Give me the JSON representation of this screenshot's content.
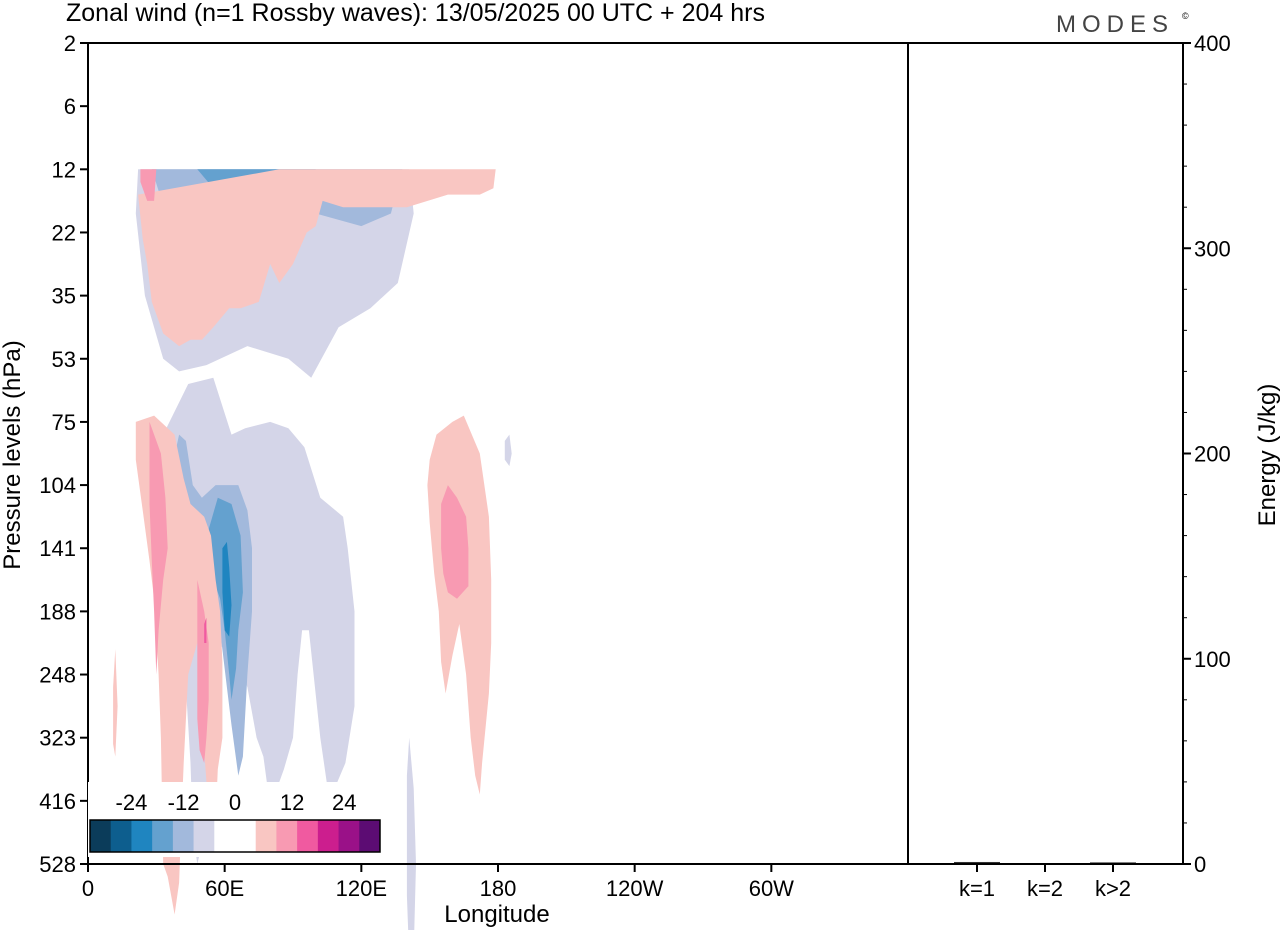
{
  "chart_data": {
    "type": "heatmap",
    "title": "Zonal wind (n=1 Rossby waves):  13/05/2025  00 UTC  + 204 hrs",
    "brand": "MODES",
    "brand_mark": "©",
    "xlabel": "Longitude",
    "ylabel": "Pressure levels (hPa)",
    "x_ticks": [
      "0",
      "60E",
      "120E",
      "180",
      "120W",
      "60W"
    ],
    "y_ticks": [
      "2",
      "6",
      "12",
      "22",
      "35",
      "53",
      "75",
      "104",
      "141",
      "188",
      "248",
      "323",
      "416",
      "528"
    ],
    "y_scale": "level index (nonlinear pressure)",
    "colorbar": {
      "tick_labels": [
        "-24",
        "-12",
        "0",
        "12",
        "24"
      ],
      "colors": [
        "#0b3c5a",
        "#0d5e8e",
        "#1f85c0",
        "#64a1cf",
        "#a2b9dc",
        "#d4d5e8",
        "#ffffff",
        "#ffffff",
        "#f9c6c2",
        "#f89ab2",
        "#f05aa0",
        "#cc1e8e",
        "#9a1188",
        "#5c0c73"
      ]
    },
    "contours": [
      {
        "name": "negative-upper",
        "fill": "#d4d5e8",
        "polygon": [
          [
            22,
            2.0
          ],
          [
            141,
            2.0
          ],
          [
            143,
            2.7
          ],
          [
            136,
            3.8
          ],
          [
            124,
            4.2
          ],
          [
            110,
            4.5
          ],
          [
            98,
            5.3
          ],
          [
            88,
            5.0
          ],
          [
            70,
            4.8
          ],
          [
            52,
            5.1
          ],
          [
            40,
            5.2
          ],
          [
            33,
            5.0
          ],
          [
            25,
            4.0
          ],
          [
            21,
            2.7
          ]
        ]
      },
      {
        "name": "negative-upper",
        "fill": "#a2b9dc",
        "polygon": [
          [
            28,
            2.0
          ],
          [
            138,
            2.0
          ],
          [
            133,
            2.7
          ],
          [
            120,
            2.9
          ],
          [
            100,
            2.7
          ],
          [
            80,
            2.7
          ],
          [
            62,
            3.3
          ],
          [
            48,
            3.3
          ],
          [
            35,
            2.8
          ]
        ]
      },
      {
        "name": "negative-upper",
        "fill": "#64a1cf",
        "polygon": [
          [
            48,
            2.0
          ],
          [
            100,
            2.0
          ],
          [
            92,
            2.3
          ],
          [
            70,
            2.3
          ],
          [
            55,
            2.3
          ]
        ]
      },
      {
        "name": "negative-lower",
        "fill": "#d4d5e8",
        "polygon": [
          [
            33,
            6.2
          ],
          [
            44,
            5.4
          ],
          [
            55,
            5.3
          ],
          [
            63,
            6.2
          ],
          [
            69,
            6.1
          ],
          [
            80,
            6.0
          ],
          [
            88,
            6.1
          ],
          [
            95,
            6.4
          ],
          [
            102,
            7.2
          ],
          [
            112,
            7.5
          ],
          [
            114,
            8.0
          ],
          [
            117,
            9.0
          ],
          [
            117,
            10.5
          ],
          [
            113,
            11.4
          ],
          [
            106,
            12.0
          ],
          [
            102,
            11.0
          ],
          [
            97,
            9.3
          ],
          [
            94,
            9.3
          ],
          [
            92,
            10.0
          ],
          [
            90,
            11.0
          ],
          [
            86,
            11.5
          ],
          [
            80,
            12.1
          ],
          [
            77,
            11.3
          ],
          [
            74,
            11.0
          ],
          [
            70,
            10.2
          ],
          [
            66,
            9.8
          ],
          [
            62,
            9.4
          ],
          [
            58,
            9.6
          ],
          [
            56,
            10.5
          ],
          [
            53,
            11.5
          ],
          [
            52,
            12.3
          ],
          [
            50,
            12.7
          ],
          [
            48,
            13.0
          ],
          [
            46,
            12.5
          ],
          [
            45,
            11.4
          ],
          [
            43,
            10.2
          ],
          [
            42,
            9.0
          ],
          [
            39,
            8.0
          ],
          [
            36,
            7.0
          ],
          [
            34,
            6.8
          ]
        ]
      },
      {
        "name": "negative-lower",
        "fill": "#a2b9dc",
        "polygon": [
          [
            37,
            6.7
          ],
          [
            40,
            6.2
          ],
          [
            43,
            6.3
          ],
          [
            46,
            7.0
          ],
          [
            50,
            7.2
          ],
          [
            56,
            7.0
          ],
          [
            61,
            7.0
          ],
          [
            66,
            7.0
          ],
          [
            70,
            7.4
          ],
          [
            72,
            8.0
          ],
          [
            72,
            9.0
          ],
          [
            70,
            10.0
          ],
          [
            68,
            11.3
          ],
          [
            66,
            11.6
          ],
          [
            63,
            10.8
          ],
          [
            61,
            10.2
          ],
          [
            58,
            9.3
          ],
          [
            55,
            8.7
          ],
          [
            52,
            8.5
          ],
          [
            48,
            8.4
          ],
          [
            44,
            8.5
          ],
          [
            42,
            8.0
          ],
          [
            40,
            7.5
          ],
          [
            38,
            7.2
          ]
        ]
      },
      {
        "name": "negative-lower",
        "fill": "#64a1cf",
        "polygon": [
          [
            53,
            7.7
          ],
          [
            57,
            7.2
          ],
          [
            63,
            7.3
          ],
          [
            67,
            7.8
          ],
          [
            68,
            8.7
          ],
          [
            66,
            9.3
          ],
          [
            65,
            9.9
          ],
          [
            63,
            10.4
          ],
          [
            62,
            10.0
          ],
          [
            60,
            9.3
          ],
          [
            58,
            8.8
          ],
          [
            55,
            8.5
          ]
        ]
      },
      {
        "name": "negative-lower",
        "fill": "#1f85c0",
        "polygon": [
          [
            59,
            8.0
          ],
          [
            61,
            7.9
          ],
          [
            62,
            8.3
          ],
          [
            63,
            8.9
          ],
          [
            62,
            9.4
          ],
          [
            60,
            9.3
          ],
          [
            59,
            8.7
          ]
        ]
      },
      {
        "name": "negative-lower-small",
        "fill": "#d4d5e8",
        "polygon": [
          [
            140,
            11.6
          ],
          [
            141,
            11.0
          ],
          [
            143,
            11.8
          ],
          [
            144,
            13.0
          ],
          [
            143,
            14.4
          ],
          [
            141,
            14.5
          ],
          [
            140,
            13.5
          ]
        ]
      },
      {
        "name": "negative-small",
        "fill": "#d4d5e8",
        "polygon": [
          [
            183,
            6.3
          ],
          [
            185,
            6.2
          ],
          [
            186,
            6.5
          ],
          [
            185,
            6.7
          ],
          [
            183,
            6.6
          ]
        ]
      },
      {
        "name": "positive-upper",
        "fill": "#f9c6c2",
        "polygon": [
          [
            84,
            2.0
          ],
          [
            179,
            2.0
          ],
          [
            178,
            2.3
          ],
          [
            172,
            2.4
          ],
          [
            158,
            2.4
          ],
          [
            140,
            2.6
          ],
          [
            122,
            2.6
          ],
          [
            112,
            2.6
          ],
          [
            103,
            2.5
          ],
          [
            100,
            2.9
          ],
          [
            96,
            3.0
          ],
          [
            90,
            3.5
          ],
          [
            84,
            3.8
          ],
          [
            80,
            3.5
          ],
          [
            75,
            4.1
          ],
          [
            67,
            4.2
          ],
          [
            62,
            4.2
          ],
          [
            55,
            4.5
          ],
          [
            50,
            4.7
          ],
          [
            45,
            4.7
          ],
          [
            40,
            4.8
          ],
          [
            33,
            4.6
          ],
          [
            28,
            4.1
          ],
          [
            26,
            3.5
          ],
          [
            24,
            3.1
          ],
          [
            22,
            2.4
          ]
        ]
      },
      {
        "name": "positive-upper",
        "fill": "#f89ab2",
        "polygon": [
          [
            23,
            2.0
          ],
          [
            30,
            2.0
          ],
          [
            29,
            2.5
          ],
          [
            26,
            2.5
          ],
          [
            23,
            2.2
          ]
        ]
      },
      {
        "name": "positive-lower",
        "fill": "#f9c6c2",
        "polygon": [
          [
            21,
            6.0
          ],
          [
            29,
            5.9
          ],
          [
            38,
            6.2
          ],
          [
            42,
            6.9
          ],
          [
            45,
            7.3
          ],
          [
            51,
            7.5
          ],
          [
            54,
            7.8
          ],
          [
            56,
            8.5
          ],
          [
            58,
            9.0
          ],
          [
            59,
            9.8
          ],
          [
            59,
            11.0
          ],
          [
            57,
            11.5
          ],
          [
            56,
            12.3
          ],
          [
            53,
            12.2
          ],
          [
            51,
            11.2
          ],
          [
            50,
            9.7
          ],
          [
            48,
            9.5
          ],
          [
            44,
            10.0
          ],
          [
            42,
            11.4
          ],
          [
            41,
            12.3
          ],
          [
            40,
            13.3
          ],
          [
            38,
            13.8
          ],
          [
            35,
            13.2
          ],
          [
            33,
            13.0
          ],
          [
            32,
            11.0
          ],
          [
            31,
            10.0
          ],
          [
            29,
            8.8
          ],
          [
            27,
            8.2
          ],
          [
            24,
            7.4
          ],
          [
            21,
            6.6
          ]
        ]
      },
      {
        "name": "positive-lower",
        "fill": "#f89ab2",
        "polygon": [
          [
            27,
            6.0
          ],
          [
            32,
            6.5
          ],
          [
            34,
            7.2
          ],
          [
            35,
            8.0
          ],
          [
            33,
            8.5
          ],
          [
            31,
            9.3
          ],
          [
            30,
            10.0
          ],
          [
            29,
            9.0
          ],
          [
            28,
            8.2
          ],
          [
            27,
            7.3
          ]
        ]
      },
      {
        "name": "positive-lower",
        "fill": "#f89ab2",
        "polygon": [
          [
            48,
            8.5
          ],
          [
            51,
            9.0
          ],
          [
            53,
            9.5
          ],
          [
            53,
            10.4
          ],
          [
            52,
            11.0
          ],
          [
            51,
            11.4
          ],
          [
            49,
            11.2
          ],
          [
            48,
            10.7
          ],
          [
            48,
            9.7
          ]
        ]
      },
      {
        "name": "positive-lower-east",
        "fill": "#f9c6c2",
        "polygon": [
          [
            160,
            6.0
          ],
          [
            165,
            5.9
          ],
          [
            172,
            6.5
          ],
          [
            176,
            7.5
          ],
          [
            177,
            8.5
          ],
          [
            177,
            9.5
          ],
          [
            176,
            10.3
          ],
          [
            173,
            11.4
          ],
          [
            172,
            11.9
          ],
          [
            170,
            11.6
          ],
          [
            168,
            11.0
          ],
          [
            166,
            10.0
          ],
          [
            163,
            9.2
          ],
          [
            160,
            9.7
          ],
          [
            157,
            10.3
          ],
          [
            155,
            9.8
          ],
          [
            154,
            9.0
          ],
          [
            152,
            8.4
          ],
          [
            150,
            7.6
          ],
          [
            149,
            7.0
          ],
          [
            150,
            6.6
          ],
          [
            153,
            6.2
          ]
        ]
      },
      {
        "name": "positive-lower-east",
        "fill": "#f89ab2",
        "polygon": [
          [
            155,
            7.3
          ],
          [
            158,
            7.0
          ],
          [
            162,
            7.2
          ],
          [
            166,
            7.5
          ],
          [
            167,
            8.0
          ],
          [
            167,
            8.6
          ],
          [
            162,
            8.8
          ],
          [
            158,
            8.7
          ],
          [
            156,
            8.4
          ],
          [
            155,
            8.0
          ]
        ]
      },
      {
        "name": "positive-small",
        "fill": "#f9c6c2",
        "polygon": [
          [
            11,
            10.2
          ],
          [
            12,
            9.6
          ],
          [
            13,
            10.5
          ],
          [
            12,
            11.3
          ],
          [
            11,
            11.1
          ]
        ]
      },
      {
        "name": "positive-peak",
        "fill": "#f05aa0",
        "polygon": [
          [
            51,
            9.2
          ],
          [
            52,
            9.1
          ],
          [
            52,
            9.5
          ],
          [
            51,
            9.5
          ]
        ]
      }
    ],
    "energy_panel": {
      "ylabel": "Energy (J/kg)",
      "y_ticks": [
        "0",
        "100",
        "200",
        "300",
        "400"
      ],
      "ylim": [
        0,
        400
      ],
      "categories": [
        "k=1",
        "k=2",
        "k>2"
      ],
      "values": [
        0.5,
        0.0,
        0.3
      ]
    }
  }
}
